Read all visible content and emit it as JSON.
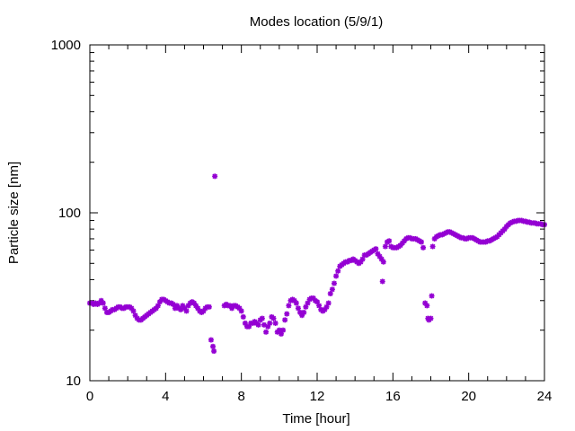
{
  "chart_data": {
    "type": "scatter",
    "title": "Modes location (5/9/1)",
    "xlabel": "Time [hour]",
    "ylabel": "Particle size [nm]",
    "xlim": [
      0,
      24
    ],
    "ylim": [
      10,
      1000
    ],
    "yscale": "log",
    "grid": false,
    "legend": "none",
    "marker_color": "#9400d3",
    "x_ticks": [
      0,
      4,
      8,
      12,
      16,
      20,
      24
    ],
    "y_ticks": [
      10,
      100,
      1000
    ],
    "x_tick_labels": [
      "0",
      "4",
      "8",
      "12",
      "16",
      "20",
      "24"
    ],
    "y_tick_labels": [
      "10",
      "100",
      "1000"
    ],
    "series": [
      {
        "points": [
          [
            0.0,
            29
          ],
          [
            0.1,
            29
          ],
          [
            0.2,
            28.5
          ],
          [
            0.3,
            29
          ],
          [
            0.4,
            28.5
          ],
          [
            0.5,
            29
          ],
          [
            0.6,
            30
          ],
          [
            0.7,
            29
          ],
          [
            0.8,
            27
          ],
          [
            0.9,
            25.5
          ],
          [
            1.0,
            25.5
          ],
          [
            1.1,
            26
          ],
          [
            1.2,
            26.5
          ],
          [
            1.3,
            26.5
          ],
          [
            1.4,
            27
          ],
          [
            1.5,
            27.5
          ],
          [
            1.6,
            27.5
          ],
          [
            1.7,
            27
          ],
          [
            1.8,
            27
          ],
          [
            1.9,
            27.5
          ],
          [
            2.0,
            27.5
          ],
          [
            2.1,
            27.5
          ],
          [
            2.2,
            27
          ],
          [
            2.3,
            26
          ],
          [
            2.4,
            24.5
          ],
          [
            2.5,
            23.5
          ],
          [
            2.6,
            23
          ],
          [
            2.7,
            23
          ],
          [
            2.8,
            23.5
          ],
          [
            2.9,
            24
          ],
          [
            3.0,
            24.5
          ],
          [
            3.1,
            25
          ],
          [
            3.2,
            25.5
          ],
          [
            3.3,
            26
          ],
          [
            3.4,
            26.5
          ],
          [
            3.5,
            27
          ],
          [
            3.6,
            28
          ],
          [
            3.7,
            29.5
          ],
          [
            3.8,
            30.5
          ],
          [
            3.9,
            30.5
          ],
          [
            4.0,
            30
          ],
          [
            4.1,
            29.5
          ],
          [
            4.2,
            29
          ],
          [
            4.3,
            29
          ],
          [
            4.4,
            28.5
          ],
          [
            4.5,
            27
          ],
          [
            4.6,
            28
          ],
          [
            4.7,
            27
          ],
          [
            4.8,
            26.5
          ],
          [
            4.9,
            28
          ],
          [
            5.0,
            27
          ],
          [
            5.1,
            26
          ],
          [
            5.2,
            28
          ],
          [
            5.3,
            29
          ],
          [
            5.4,
            29.5
          ],
          [
            5.5,
            29
          ],
          [
            5.6,
            28
          ],
          [
            5.7,
            27
          ],
          [
            5.8,
            26
          ],
          [
            5.9,
            25.5
          ],
          [
            6.0,
            26
          ],
          [
            6.1,
            27
          ],
          [
            6.2,
            27.5
          ],
          [
            6.3,
            27.5
          ],
          [
            6.4,
            17.5
          ],
          [
            6.5,
            16
          ],
          [
            6.55,
            15
          ],
          [
            6.6,
            165
          ],
          [
            7.1,
            28
          ],
          [
            7.2,
            28.5
          ],
          [
            7.3,
            28
          ],
          [
            7.4,
            28
          ],
          [
            7.5,
            27
          ],
          [
            7.6,
            28
          ],
          [
            7.7,
            28
          ],
          [
            7.8,
            27.5
          ],
          [
            7.9,
            27
          ],
          [
            8.0,
            26
          ],
          [
            8.1,
            24
          ],
          [
            8.2,
            22
          ],
          [
            8.3,
            21
          ],
          [
            8.4,
            21
          ],
          [
            8.5,
            22
          ],
          [
            8.6,
            22
          ],
          [
            8.7,
            22.5
          ],
          [
            8.8,
            22
          ],
          [
            8.9,
            21.5
          ],
          [
            9.0,
            23
          ],
          [
            9.1,
            23.5
          ],
          [
            9.2,
            21.5
          ],
          [
            9.3,
            19.5
          ],
          [
            9.4,
            21
          ],
          [
            9.5,
            22
          ],
          [
            9.6,
            24
          ],
          [
            9.7,
            23.5
          ],
          [
            9.8,
            22
          ],
          [
            9.9,
            19.5
          ],
          [
            10.0,
            20
          ],
          [
            10.1,
            19
          ],
          [
            10.2,
            20
          ],
          [
            10.3,
            23
          ],
          [
            10.4,
            25
          ],
          [
            10.5,
            28
          ],
          [
            10.6,
            30
          ],
          [
            10.7,
            30.5
          ],
          [
            10.8,
            30
          ],
          [
            10.9,
            29
          ],
          [
            11.0,
            27
          ],
          [
            11.1,
            25.5
          ],
          [
            11.2,
            24.5
          ],
          [
            11.3,
            25.5
          ],
          [
            11.4,
            27.5
          ],
          [
            11.5,
            29
          ],
          [
            11.6,
            30.5
          ],
          [
            11.7,
            31
          ],
          [
            11.8,
            31
          ],
          [
            11.9,
            30
          ],
          [
            12.0,
            29.5
          ],
          [
            12.1,
            28
          ],
          [
            12.2,
            26.5
          ],
          [
            12.3,
            26
          ],
          [
            12.4,
            26.5
          ],
          [
            12.5,
            27.5
          ],
          [
            12.6,
            29
          ],
          [
            12.7,
            33
          ],
          [
            12.8,
            35
          ],
          [
            12.9,
            38
          ],
          [
            13.0,
            42
          ],
          [
            13.1,
            45
          ],
          [
            13.2,
            48
          ],
          [
            13.3,
            49
          ],
          [
            13.4,
            50
          ],
          [
            13.5,
            51
          ],
          [
            13.6,
            51
          ],
          [
            13.7,
            52
          ],
          [
            13.8,
            52
          ],
          [
            13.9,
            53
          ],
          [
            14.0,
            52
          ],
          [
            14.1,
            51
          ],
          [
            14.2,
            50
          ],
          [
            14.3,
            51
          ],
          [
            14.4,
            53
          ],
          [
            14.5,
            56
          ],
          [
            14.6,
            56
          ],
          [
            14.7,
            57
          ],
          [
            14.8,
            58
          ],
          [
            14.9,
            59
          ],
          [
            15.0,
            60
          ],
          [
            15.1,
            61
          ],
          [
            15.2,
            57
          ],
          [
            15.3,
            55
          ],
          [
            15.4,
            53
          ],
          [
            15.45,
            39
          ],
          [
            15.5,
            51
          ],
          [
            15.6,
            63
          ],
          [
            15.7,
            67
          ],
          [
            15.8,
            68
          ],
          [
            15.9,
            63
          ],
          [
            16.0,
            62
          ],
          [
            16.1,
            62
          ],
          [
            16.2,
            62
          ],
          [
            16.3,
            63
          ],
          [
            16.4,
            64
          ],
          [
            16.5,
            66
          ],
          [
            16.6,
            68
          ],
          [
            16.7,
            70
          ],
          [
            16.8,
            71
          ],
          [
            16.9,
            71
          ],
          [
            17.0,
            70
          ],
          [
            17.1,
            70
          ],
          [
            17.2,
            70
          ],
          [
            17.3,
            69
          ],
          [
            17.4,
            68
          ],
          [
            17.5,
            67
          ],
          [
            17.6,
            62
          ],
          [
            17.7,
            29
          ],
          [
            17.8,
            28
          ],
          [
            17.85,
            23.5
          ],
          [
            17.9,
            23
          ],
          [
            18.0,
            23.5
          ],
          [
            18.05,
            32
          ],
          [
            18.1,
            63
          ],
          [
            18.2,
            70
          ],
          [
            18.3,
            72
          ],
          [
            18.4,
            73
          ],
          [
            18.5,
            74
          ],
          [
            18.6,
            74
          ],
          [
            18.7,
            75
          ],
          [
            18.8,
            76
          ],
          [
            18.9,
            77
          ],
          [
            19.0,
            77
          ],
          [
            19.1,
            76
          ],
          [
            19.2,
            75
          ],
          [
            19.3,
            74
          ],
          [
            19.4,
            73
          ],
          [
            19.5,
            72
          ],
          [
            19.6,
            71
          ],
          [
            19.7,
            71
          ],
          [
            19.8,
            70
          ],
          [
            19.9,
            70
          ],
          [
            20.0,
            71
          ],
          [
            20.1,
            71
          ],
          [
            20.2,
            71
          ],
          [
            20.3,
            70
          ],
          [
            20.4,
            69
          ],
          [
            20.5,
            68
          ],
          [
            20.6,
            67
          ],
          [
            20.7,
            67
          ],
          [
            20.8,
            67
          ],
          [
            20.9,
            67
          ],
          [
            21.0,
            68
          ],
          [
            21.1,
            68
          ],
          [
            21.2,
            69
          ],
          [
            21.3,
            70
          ],
          [
            21.4,
            71
          ],
          [
            21.5,
            72
          ],
          [
            21.6,
            74
          ],
          [
            21.7,
            76
          ],
          [
            21.8,
            78
          ],
          [
            21.9,
            80
          ],
          [
            22.0,
            83
          ],
          [
            22.1,
            85
          ],
          [
            22.2,
            87
          ],
          [
            22.3,
            88
          ],
          [
            22.4,
            89
          ],
          [
            22.5,
            89
          ],
          [
            22.6,
            90
          ],
          [
            22.7,
            90
          ],
          [
            22.8,
            90
          ],
          [
            22.9,
            89
          ],
          [
            23.0,
            89
          ],
          [
            23.1,
            88
          ],
          [
            23.2,
            88
          ],
          [
            23.3,
            87
          ],
          [
            23.4,
            87
          ],
          [
            23.5,
            87
          ],
          [
            23.6,
            86
          ],
          [
            23.7,
            86
          ],
          [
            23.8,
            86
          ],
          [
            23.9,
            85
          ],
          [
            24.0,
            85
          ]
        ]
      }
    ]
  }
}
